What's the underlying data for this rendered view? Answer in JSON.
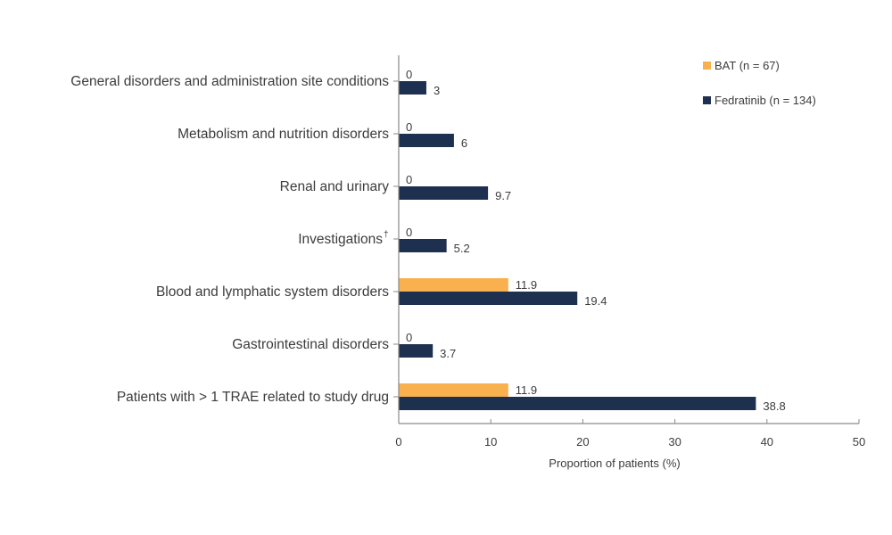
{
  "chart_data": {
    "type": "bar",
    "orientation": "horizontal",
    "title": "",
    "xlabel": "Proportion of patients (%)",
    "ylabel": "",
    "xlim": [
      0,
      50
    ],
    "xticks": [
      0,
      10,
      20,
      30,
      40,
      50
    ],
    "xtick_labels": [
      "0",
      "10",
      "20",
      "30",
      "40",
      "50"
    ],
    "grid": false,
    "legend_position": "top-right",
    "categories": [
      "General disorders and administration site conditions",
      "Metabolism and nutrition disorders",
      "Renal and urinary",
      "Investigations",
      "Blood and lymphatic system disorders",
      "Gastrointestinal disorders",
      "Patients with > 1 TRAE related to study drug"
    ],
    "category_superscripts": [
      "",
      "",
      "",
      "†",
      "",
      "",
      ""
    ],
    "series": [
      {
        "name": "BAT (n = 67)",
        "color": "#F9B04F",
        "values": [
          0,
          0,
          0,
          0,
          11.9,
          0,
          11.9
        ],
        "labels": [
          "0",
          "0",
          "0",
          "0",
          "11.9",
          "0",
          "11.9"
        ]
      },
      {
        "name": "Fedratinib (n = 134)",
        "color": "#1E3050",
        "values": [
          3,
          6,
          9.7,
          5.2,
          19.4,
          3.7,
          38.8
        ],
        "labels": [
          "3",
          "6",
          "9.7",
          "5.2",
          "19.4",
          "3.7",
          "38.8"
        ]
      }
    ]
  }
}
